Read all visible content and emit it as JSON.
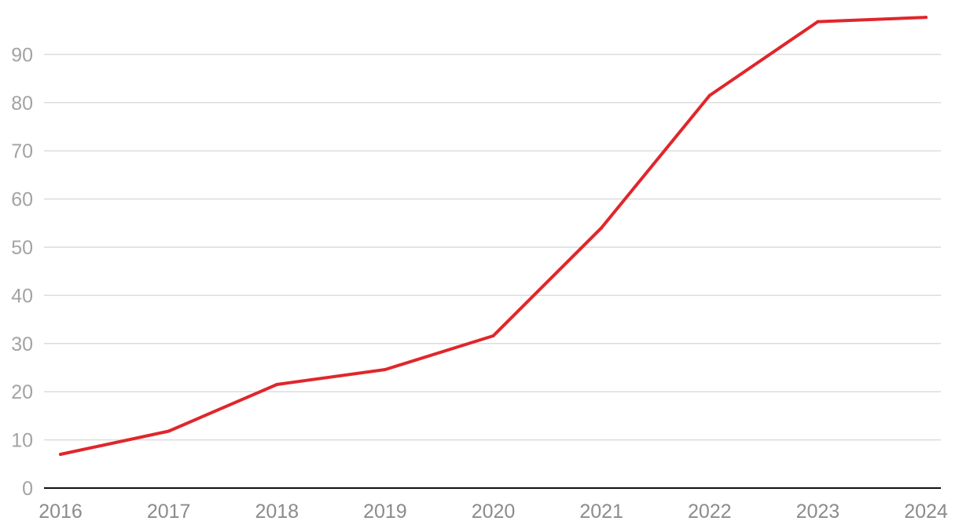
{
  "chart_data": {
    "type": "line",
    "title": "",
    "xlabel": "",
    "ylabel": "",
    "x": [
      "2016",
      "2017",
      "2018",
      "2019",
      "2020",
      "2021",
      "2022",
      "2023",
      "2024"
    ],
    "series": [
      {
        "values": [
          7.0,
          11.8,
          21.5,
          24.6,
          31.6,
          54.0,
          81.5,
          96.8,
          97.7
        ],
        "color": "#e0262b"
      }
    ],
    "ylim": [
      0,
      100
    ],
    "yticks": [
      0,
      10,
      20,
      30,
      40,
      50,
      60,
      70,
      80,
      90
    ],
    "grid": true,
    "legend": "none"
  }
}
